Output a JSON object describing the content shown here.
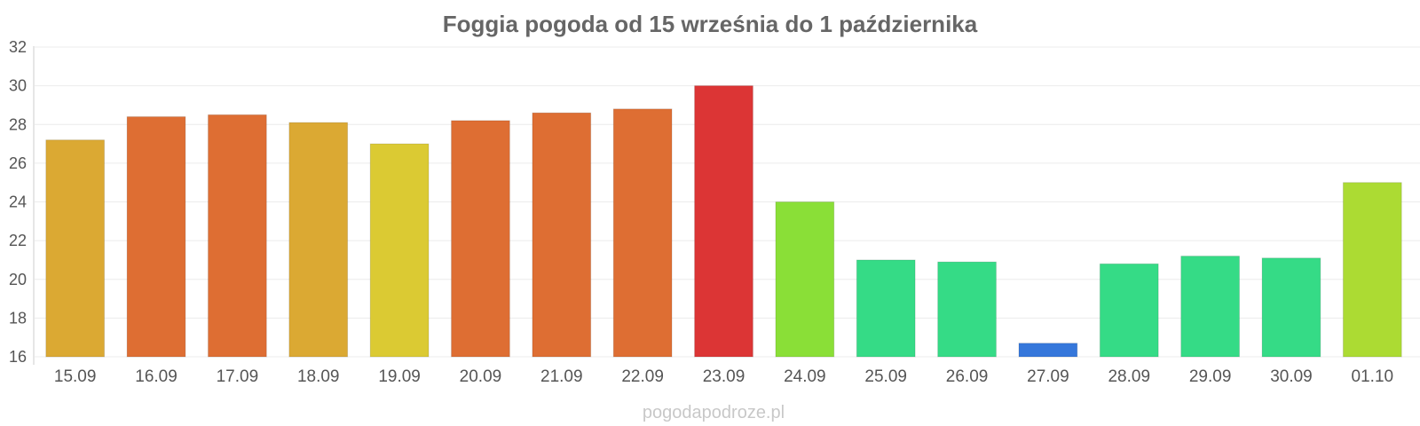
{
  "chart_data": {
    "type": "bar",
    "title": "Foggia pogoda od 15 września do 1 października",
    "categories": [
      "15.09",
      "16.09",
      "17.09",
      "18.09",
      "19.09",
      "20.09",
      "21.09",
      "22.09",
      "23.09",
      "24.09",
      "25.09",
      "26.09",
      "27.09",
      "28.09",
      "29.09",
      "30.09",
      "01.10"
    ],
    "values": [
      27.2,
      28.4,
      28.5,
      28.1,
      27.0,
      28.2,
      28.6,
      28.8,
      30.0,
      24.0,
      21.0,
      20.9,
      16.7,
      20.8,
      21.2,
      21.1,
      25.0
    ],
    "colors": [
      "#dba933",
      "#de6e33",
      "#de6e33",
      "#dba933",
      "#dbca33",
      "#de6e33",
      "#de6e33",
      "#de6e33",
      "#dc3535",
      "#8adf37",
      "#35db86",
      "#35db86",
      "#3577db",
      "#35db86",
      "#35db86",
      "#35db86",
      "#acdb33"
    ],
    "ylim": [
      16,
      32
    ],
    "yticks": [
      16,
      18,
      20,
      22,
      24,
      26,
      28,
      30,
      32
    ],
    "xlabel": "",
    "ylabel": "",
    "grid": true,
    "legend": "none"
  },
  "watermark": "pogodapodroze.pl"
}
